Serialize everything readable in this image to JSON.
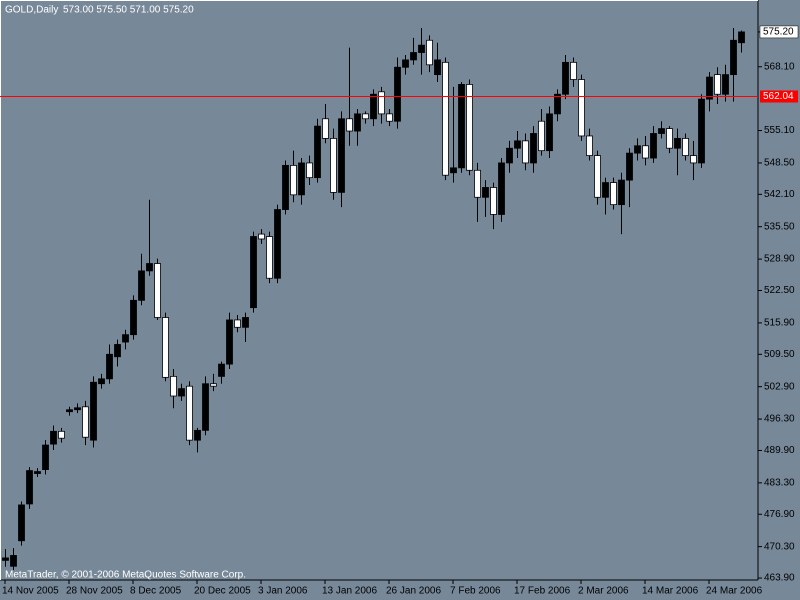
{
  "chart_data": {
    "type": "candlestick",
    "title": "GOLD,Daily",
    "last_ohlc_label": "573.00 575.50 571.00 575.20",
    "copyright": "MetaTrader, © 2001-2006 MetaQuotes Software Corp.",
    "background": "#778899",
    "bull_color": "#000000",
    "bear_color": "#ffffff",
    "categories": [
      "14 Nov 2005",
      null,
      null,
      null,
      null,
      null,
      null,
      null,
      "28 Nov 2005",
      null,
      null,
      null,
      null,
      null,
      null,
      null,
      "8 Dec 2005",
      null,
      null,
      null,
      null,
      null,
      null,
      null,
      "20 Dec 2005",
      null,
      null,
      null,
      null,
      null,
      null,
      null,
      "3 Jan 2006",
      null,
      null,
      null,
      null,
      null,
      null,
      null,
      "13 Jan 2006",
      null,
      null,
      null,
      null,
      null,
      null,
      null,
      "26 Jan 2006",
      null,
      null,
      null,
      null,
      null,
      null,
      null,
      "7 Feb 2006",
      null,
      null,
      null,
      null,
      null,
      null,
      null,
      "17 Feb 2006",
      null,
      null,
      null,
      null,
      null,
      null,
      null,
      "2 Mar 2006",
      null,
      null,
      null,
      null,
      null,
      null,
      null,
      "14 Mar 2006",
      null,
      null,
      null,
      null,
      null,
      null,
      null,
      "24 Mar 2006",
      null,
      null,
      null,
      null
    ],
    "open": [
      467.5,
      466.3,
      471.5,
      479.0,
      485.2,
      486.0,
      491.2,
      493.8,
      497.8,
      498.2,
      498.8,
      492.0,
      503.5,
      504.5,
      509.0,
      512.0,
      513.5,
      520.5,
      526.5,
      528.0,
      517.0,
      505.0,
      501.0,
      503.0,
      492.0,
      494.0,
      503.5,
      505.0,
      507.5,
      516.5,
      515.0,
      519.0,
      534.0,
      533.5,
      525.0,
      539.0,
      548.0,
      542.0,
      548.5,
      545.5,
      557.5,
      553.5,
      542.5,
      557.5,
      555.0,
      558.5,
      557.5,
      563.0,
      558.5,
      557.0,
      568.0,
      569.5,
      571.0,
      573.5,
      566.5,
      569.0,
      546.5,
      547.5,
      564.5,
      547.0,
      541.5,
      543.5,
      538.0,
      548.5,
      551.5,
      553.0,
      548.5,
      557.0,
      551.0,
      558.5,
      562.5,
      569.0,
      565.5,
      554.0,
      550.0,
      541.5,
      544.5,
      540.0,
      545.0,
      550.5,
      552.0,
      549.5,
      554.5,
      555.5,
      551.5,
      553.5,
      550.0,
      548.5,
      561.5,
      566.5,
      562.5,
      566.5,
      573.0
    ],
    "high": [
      469.8,
      470.0,
      479.5,
      486.5,
      486.3,
      492.0,
      495.0,
      494.5,
      498.8,
      499.5,
      500.0,
      505.0,
      505.5,
      511.5,
      512.5,
      514.5,
      521.5,
      530.0,
      541.0,
      529.0,
      518.0,
      506.5,
      503.5,
      504.0,
      494.5,
      505.0,
      505.5,
      508.0,
      518.0,
      517.5,
      518.0,
      534.5,
      535.0,
      534.5,
      540.0,
      549.0,
      551.0,
      549.5,
      550.0,
      557.5,
      560.5,
      555.5,
      559.0,
      572.0,
      559.5,
      559.0,
      563.5,
      564.0,
      559.5,
      570.0,
      570.5,
      574.0,
      576.0,
      574.5,
      573.0,
      570.0,
      564.0,
      565.0,
      565.5,
      548.5,
      545.0,
      544.5,
      549.5,
      553.0,
      555.0,
      554.5,
      556.0,
      559.5,
      560.0,
      563.5,
      570.5,
      570.0,
      566.5,
      555.5,
      551.0,
      545.5,
      545.5,
      546.5,
      551.5,
      553.5,
      554.0,
      556.0,
      557.0,
      556.0,
      555.5,
      554.5,
      553.0,
      562.5,
      567.0,
      568.0,
      568.5,
      576.0,
      575.5
    ],
    "low": [
      466.2,
      465.5,
      470.5,
      478.0,
      484.5,
      485.0,
      490.0,
      491.5,
      497.0,
      497.5,
      491.0,
      490.5,
      502.5,
      503.5,
      507.0,
      510.5,
      512.5,
      519.5,
      525.5,
      516.5,
      504.0,
      498.5,
      500.0,
      491.0,
      489.5,
      493.0,
      502.0,
      503.5,
      506.5,
      514.0,
      512.0,
      518.0,
      532.0,
      524.0,
      524.0,
      538.0,
      540.5,
      540.0,
      544.0,
      544.5,
      552.5,
      541.0,
      539.5,
      552.0,
      552.0,
      556.5,
      556.0,
      556.5,
      556.0,
      555.5,
      566.5,
      568.5,
      566.5,
      567.0,
      565.0,
      545.0,
      544.5,
      546.5,
      546.0,
      536.5,
      537.5,
      535.0,
      536.5,
      546.5,
      549.5,
      547.0,
      546.5,
      550.0,
      549.5,
      557.0,
      561.5,
      564.0,
      553.0,
      549.0,
      540.0,
      538.0,
      539.0,
      534.0,
      539.5,
      549.0,
      548.0,
      548.5,
      553.5,
      550.5,
      546.0,
      549.0,
      545.0,
      547.5,
      559.0,
      560.5,
      561.0,
      561.0,
      571.0
    ],
    "close": [
      468.0,
      468.5,
      478.8,
      485.8,
      485.6,
      491.0,
      493.8,
      492.4,
      498.2,
      498.6,
      492.6,
      503.8,
      504.5,
      509.5,
      511.5,
      513.5,
      520.5,
      526.5,
      528.0,
      517.0,
      504.8,
      501.0,
      502.5,
      492.0,
      494.0,
      503.5,
      503.0,
      507.5,
      516.5,
      515.0,
      517.0,
      533.5,
      533.0,
      525.0,
      539.0,
      548.0,
      542.0,
      548.5,
      545.5,
      556.0,
      553.5,
      542.5,
      557.5,
      555.0,
      558.5,
      557.5,
      562.5,
      558.5,
      557.0,
      568.0,
      569.5,
      571.0,
      572.5,
      568.5,
      569.5,
      546.0,
      547.5,
      564.5,
      547.0,
      541.5,
      543.5,
      538.0,
      548.5,
      551.5,
      553.0,
      548.5,
      554.5,
      551.0,
      558.5,
      562.5,
      569.0,
      565.5,
      554.0,
      550.0,
      541.5,
      544.5,
      540.0,
      545.0,
      550.5,
      552.0,
      549.5,
      554.5,
      555.5,
      551.5,
      553.5,
      550.0,
      548.5,
      561.5,
      566.0,
      562.5,
      566.5,
      573.5,
      575.2
    ],
    "ylim": [
      463.5,
      581.3
    ],
    "yticks": [
      {
        "value": 568.1,
        "label": "568.10"
      },
      {
        "value": 555.1,
        "label": "555.10"
      },
      {
        "value": 548.5,
        "label": "548.50"
      },
      {
        "value": 542.1,
        "label": "542.10"
      },
      {
        "value": 535.5,
        "label": "535.50"
      },
      {
        "value": 528.9,
        "label": "528.90"
      },
      {
        "value": 522.5,
        "label": "522.50"
      },
      {
        "value": 515.9,
        "label": "515.90"
      },
      {
        "value": 509.5,
        "label": "509.50"
      },
      {
        "value": 502.9,
        "label": "502.90"
      },
      {
        "value": 496.3,
        "label": "496.30"
      },
      {
        "value": 489.9,
        "label": "489.90"
      },
      {
        "value": 483.3,
        "label": "483.30"
      },
      {
        "value": 476.9,
        "label": "476.90"
      },
      {
        "value": 470.3,
        "label": "470.30"
      },
      {
        "value": 463.9,
        "label": "463.90"
      }
    ],
    "bid": {
      "value": 575.2,
      "label": "575.20"
    },
    "level_line": {
      "value": 562.04,
      "label": "562.04",
      "color": "#ff0000"
    }
  }
}
